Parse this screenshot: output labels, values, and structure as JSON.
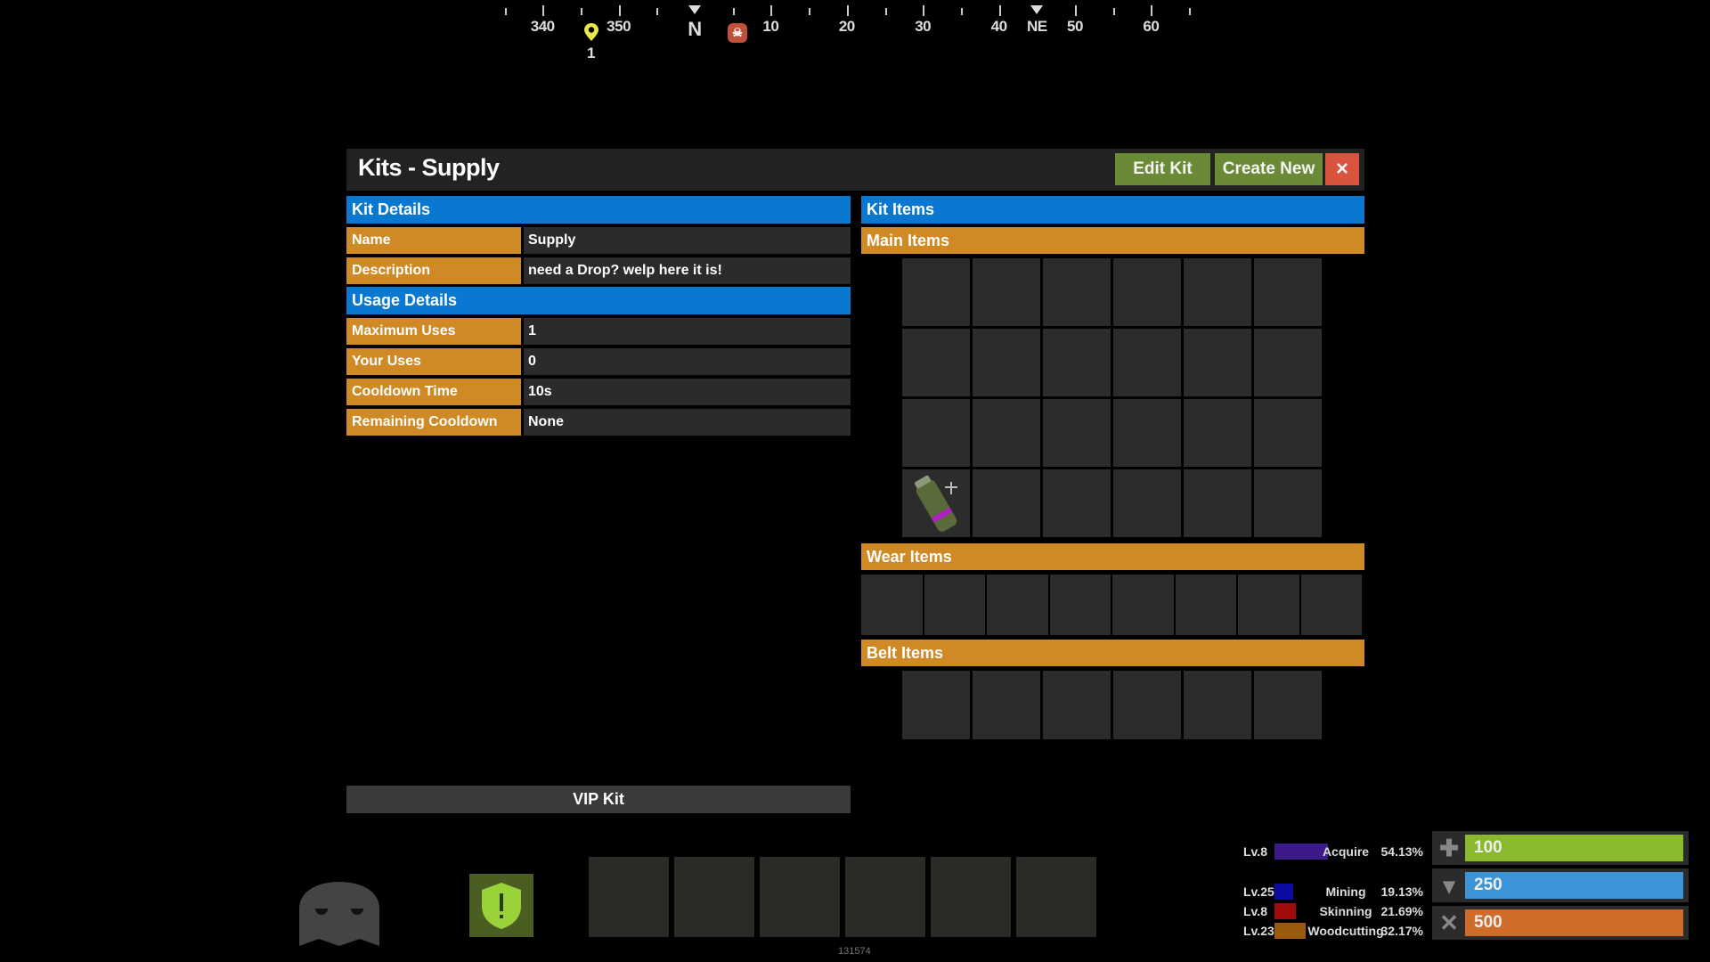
{
  "compass": {
    "labels": [
      {
        "text": "340",
        "deg": -20
      },
      {
        "text": "350",
        "deg": -10
      },
      {
        "text": "N",
        "deg": 0
      },
      {
        "text": "10",
        "deg": 10
      },
      {
        "text": "20",
        "deg": 20
      },
      {
        "text": "30",
        "deg": 30
      },
      {
        "text": "40",
        "deg": 40
      },
      {
        "text": "NE",
        "deg": 45
      },
      {
        "text": "50",
        "deg": 50
      },
      {
        "text": "60",
        "deg": 60
      }
    ],
    "marker_label": "1",
    "marker_color": "#e8e84a",
    "skull_color": "#c0503a"
  },
  "panel": {
    "title": "Kits - Supply",
    "edit_label": "Edit Kit",
    "create_label": "Create New",
    "close_label": "×",
    "green": "#6a8a36",
    "red": "#d9533f"
  },
  "kit_details": {
    "header": "Kit Details",
    "rows": [
      {
        "label": "Name",
        "value": "Supply"
      },
      {
        "label": "Description",
        "value": "need a Drop? welp here it is!"
      }
    ]
  },
  "usage_details": {
    "header": "Usage Details",
    "rows": [
      {
        "label": "Maximum Uses",
        "value": "1"
      },
      {
        "label": "Your Uses",
        "value": "0"
      },
      {
        "label": "Cooldown Time",
        "value": "10s"
      },
      {
        "label": "Remaining Cooldown",
        "value": "None"
      }
    ]
  },
  "kit_items": {
    "header": "Kit Items",
    "main_header": "Main Items",
    "wear_header": "Wear Items",
    "belt_header": "Belt Items",
    "main_item": "supply-signal-icon"
  },
  "vip_label": "VIP Kit",
  "footer_id": "131574",
  "skills": [
    {
      "level": "Lv.8",
      "name": "Acquire",
      "percent": "54.13%",
      "fill": 54.13,
      "color": "#3c1a8a"
    },
    {
      "level": "Lv.25",
      "name": "Mining",
      "percent": "19.13%",
      "fill": 19.13,
      "color": "#0c0ca0"
    },
    {
      "level": "Lv.8",
      "name": "Skinning",
      "percent": "21.69%",
      "fill": 21.69,
      "color": "#a00c0c"
    },
    {
      "level": "Lv.23",
      "name": "Woodcutting",
      "percent": "32.17%",
      "fill": 32.17,
      "color": "#9a5a10"
    }
  ],
  "stats": [
    {
      "icon": "health-icon",
      "value": "100",
      "color": "#8ab92e"
    },
    {
      "icon": "water-icon",
      "value": "250",
      "color": "#3c94d6"
    },
    {
      "icon": "food-icon",
      "value": "500",
      "color": "#d06b2a"
    }
  ]
}
